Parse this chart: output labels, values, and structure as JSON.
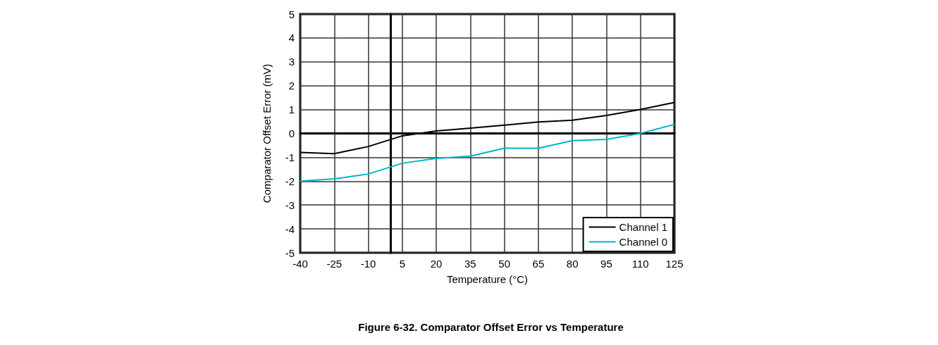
{
  "chart_data": {
    "type": "line",
    "title": "Figure 6-32. Comparator Offset Error vs Temperature",
    "xlabel": "Temperature (°C)",
    "ylabel": "Comparator Offset Error (mV)",
    "x": [
      -40,
      -25,
      -10,
      5,
      20,
      35,
      50,
      65,
      80,
      95,
      110,
      125
    ],
    "series": [
      {
        "name": "Channel 1",
        "color": "#000000",
        "values": [
          -0.8,
          -0.85,
          -0.55,
          -0.1,
          0.1,
          0.22,
          0.35,
          0.48,
          0.55,
          0.75,
          1.0,
          1.3
        ]
      },
      {
        "name": "Channel 0",
        "color": "#00b5cc",
        "values": [
          -2.0,
          -1.9,
          -1.7,
          -1.25,
          -1.05,
          -0.95,
          -0.62,
          -0.62,
          -0.3,
          -0.25,
          0.0,
          0.38
        ]
      }
    ],
    "xlim": [
      -40,
      125
    ],
    "xticks": [
      -40,
      -25,
      -10,
      5,
      20,
      35,
      50,
      65,
      80,
      95,
      110,
      125
    ],
    "ylim": [
      -5,
      5
    ],
    "yticks": [
      -5,
      -4,
      -3,
      -2,
      -1,
      0,
      1,
      2,
      3,
      4,
      5
    ],
    "grid": true,
    "legend": "bottom right",
    "marker": "none",
    "line_style": "solid"
  }
}
